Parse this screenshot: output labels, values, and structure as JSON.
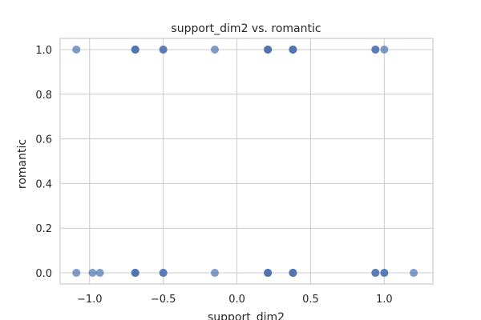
{
  "chart_data": {
    "type": "scatter",
    "title": "support_dim2 vs. romantic",
    "xlabel": "support_dim2",
    "ylabel": "romantic",
    "xlim": [
      -1.2,
      1.33
    ],
    "ylim": [
      -0.05,
      1.05
    ],
    "x_ticks": [
      -1.0,
      -0.5,
      0.0,
      0.5,
      1.0
    ],
    "x_tick_labels": [
      "−1.0",
      "−0.5",
      "0.0",
      "0.5",
      "1.0"
    ],
    "y_ticks": [
      0.0,
      0.2,
      0.4,
      0.6,
      0.8,
      1.0
    ],
    "y_tick_labels": [
      "0.0",
      "0.2",
      "0.4",
      "0.6",
      "0.8",
      "1.0"
    ],
    "grid": true,
    "legend": "none",
    "marker_color": "#4c72b0",
    "points": [
      {
        "x": -1.09,
        "y": 1.0
      },
      {
        "x": -0.69,
        "y": 1.0
      },
      {
        "x": -0.69,
        "y": 1.0
      },
      {
        "x": -0.69,
        "y": 1.0
      },
      {
        "x": -0.5,
        "y": 1.0
      },
      {
        "x": -0.5,
        "y": 1.0
      },
      {
        "x": -0.15,
        "y": 1.0
      },
      {
        "x": 0.21,
        "y": 1.0
      },
      {
        "x": 0.21,
        "y": 1.0
      },
      {
        "x": 0.21,
        "y": 1.0
      },
      {
        "x": 0.38,
        "y": 1.0
      },
      {
        "x": 0.38,
        "y": 1.0
      },
      {
        "x": 0.38,
        "y": 1.0
      },
      {
        "x": 0.94,
        "y": 1.0
      },
      {
        "x": 0.94,
        "y": 1.0
      },
      {
        "x": 1.0,
        "y": 1.0
      },
      {
        "x": -1.09,
        "y": 0.0
      },
      {
        "x": -0.98,
        "y": 0.0
      },
      {
        "x": -0.93,
        "y": 0.0
      },
      {
        "x": -0.69,
        "y": 0.0
      },
      {
        "x": -0.69,
        "y": 0.0
      },
      {
        "x": -0.69,
        "y": 0.0
      },
      {
        "x": -0.5,
        "y": 0.0
      },
      {
        "x": -0.5,
        "y": 0.0
      },
      {
        "x": -0.15,
        "y": 0.0
      },
      {
        "x": 0.21,
        "y": 0.0
      },
      {
        "x": 0.21,
        "y": 0.0
      },
      {
        "x": 0.21,
        "y": 0.0
      },
      {
        "x": 0.38,
        "y": 0.0
      },
      {
        "x": 0.38,
        "y": 0.0
      },
      {
        "x": 0.38,
        "y": 0.0
      },
      {
        "x": 0.94,
        "y": 0.0
      },
      {
        "x": 0.94,
        "y": 0.0
      },
      {
        "x": 1.0,
        "y": 0.0
      },
      {
        "x": 1.0,
        "y": 0.0
      },
      {
        "x": 1.2,
        "y": 0.0
      }
    ]
  }
}
